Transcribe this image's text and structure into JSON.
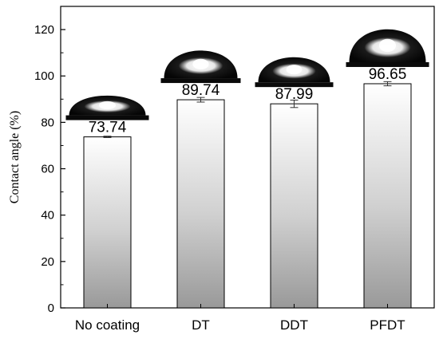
{
  "chart_data": {
    "type": "bar",
    "ylabel": "Contact angle (%)",
    "xlabel": "",
    "ylim": [
      0,
      130
    ],
    "yticks": [
      0,
      20,
      40,
      60,
      80,
      100,
      120
    ],
    "grid": false,
    "categories": [
      "No coating",
      "DT",
      "DDT",
      "PFDT"
    ],
    "values": [
      73.74,
      89.74,
      87.99,
      96.65
    ],
    "errors": [
      0.3,
      1.0,
      1.6,
      0.9
    ],
    "data_labels": [
      "73.74",
      "89.74",
      "87.99",
      "96.65"
    ],
    "bar_fill": "vertical gradient white to gray",
    "droplet_images": [
      "droplet-icon",
      "droplet-icon",
      "droplet-icon",
      "droplet-icon"
    ]
  },
  "colors": {
    "bar_top": "#ffffff",
    "bar_bottom": "#999999",
    "axis": "#000000",
    "droplet": "#0a0a0a"
  }
}
